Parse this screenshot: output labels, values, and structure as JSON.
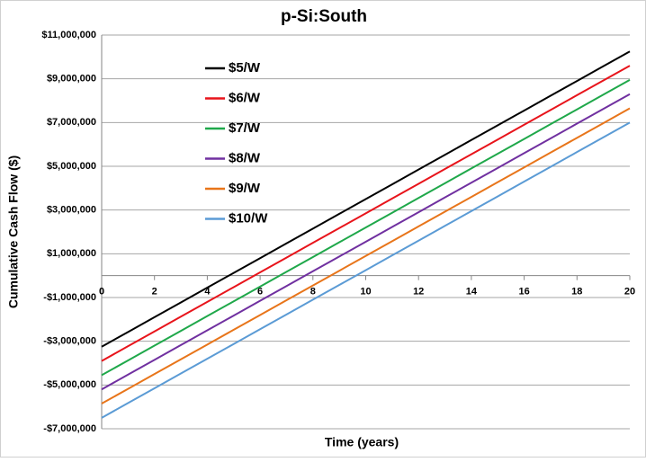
{
  "chart_data": {
    "type": "line",
    "title": "p-Si:South",
    "x_label": "Time (years)",
    "y_label": "Cumulative Cash Flow ($)",
    "x": [
      0,
      1,
      2,
      3,
      4,
      5,
      6,
      7,
      8,
      9,
      10,
      11,
      12,
      13,
      14,
      15,
      16,
      17,
      18,
      19,
      20
    ],
    "xlim": [
      0,
      20
    ],
    "xticks": [
      0,
      2,
      4,
      6,
      8,
      10,
      12,
      14,
      16,
      18,
      20
    ],
    "ylim": [
      -7000000,
      11000000
    ],
    "yticks": [
      {
        "value": -7000000,
        "label": "-$7,000,000"
      },
      {
        "value": -5000000,
        "label": "-$5,000,000"
      },
      {
        "value": -3000000,
        "label": "-$3,000,000"
      },
      {
        "value": -1000000,
        "label": "-$1,000,000"
      },
      {
        "value": 1000000,
        "label": "$1,000,000"
      },
      {
        "value": 3000000,
        "label": "$3,000,000"
      },
      {
        "value": 5000000,
        "label": "$5,000,000"
      },
      {
        "value": 7000000,
        "label": "$7,000,000"
      },
      {
        "value": 9000000,
        "label": "$9,000,000"
      },
      {
        "value": 11000000,
        "label": "$11,000,000"
      }
    ],
    "grid": true,
    "legend": "upper left",
    "series": [
      {
        "name": "$5/W",
        "color": "#000000",
        "values": [
          -3250000,
          -2575000,
          -1900000,
          -1225000,
          -550000,
          125000,
          800000,
          1475000,
          2150000,
          2825000,
          3500000,
          4175000,
          4850000,
          5525000,
          6200000,
          6875000,
          7550000,
          8225000,
          8900000,
          9575000,
          10250000
        ]
      },
      {
        "name": "$6/W",
        "color": "#e8141b",
        "values": [
          -3900000,
          -3225000,
          -2550000,
          -1875000,
          -1200000,
          -525000,
          150000,
          825000,
          1500000,
          2175000,
          2850000,
          3525000,
          4200000,
          4875000,
          5550000,
          6225000,
          6900000,
          7575000,
          8250000,
          8925000,
          9600000
        ]
      },
      {
        "name": "$7/W",
        "color": "#1fa84a",
        "values": [
          -4550000,
          -3875000,
          -3200000,
          -2525000,
          -1850000,
          -1175000,
          -500000,
          175000,
          850000,
          1525000,
          2200000,
          2875000,
          3550000,
          4225000,
          4900000,
          5575000,
          6250000,
          6925000,
          7600000,
          8275000,
          8950000
        ]
      },
      {
        "name": "$8/W",
        "color": "#7030a0",
        "values": [
          -5200000,
          -4525000,
          -3850000,
          -3175000,
          -2500000,
          -1825000,
          -1150000,
          -475000,
          200000,
          875000,
          1550000,
          2225000,
          2900000,
          3575000,
          4250000,
          4925000,
          5600000,
          6275000,
          6950000,
          7625000,
          8300000
        ]
      },
      {
        "name": "$9/W",
        "color": "#e8751a",
        "values": [
          -5850000,
          -5175000,
          -4500000,
          -3825000,
          -3150000,
          -2475000,
          -1800000,
          -1125000,
          -450000,
          225000,
          900000,
          1575000,
          2250000,
          2925000,
          3600000,
          4275000,
          4950000,
          5625000,
          6300000,
          6975000,
          7650000
        ]
      },
      {
        "name": "$10/W",
        "color": "#5b9bd5",
        "values": [
          -6500000,
          -5825000,
          -5150000,
          -4475000,
          -3800000,
          -3125000,
          -2450000,
          -1775000,
          -1100000,
          -425000,
          250000,
          925000,
          1600000,
          2275000,
          2950000,
          3625000,
          4300000,
          4975000,
          5650000,
          6325000,
          7000000
        ]
      }
    ]
  }
}
